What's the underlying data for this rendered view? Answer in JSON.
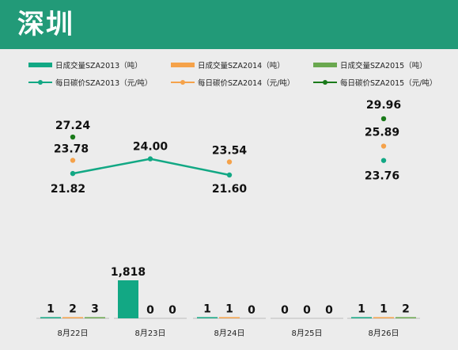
{
  "header": {
    "title": "深圳"
  },
  "colors": {
    "banner": "#229a78",
    "s2013": "#12a884",
    "s2014": "#f5a24a",
    "s2015": "#6aa84f",
    "p2015": "#1a7a1a"
  },
  "legend": {
    "bars": [
      "日成交量SZA2013（吨）",
      "日成交量SZA2014（吨）",
      "日成交量SZA2015（吨）"
    ],
    "lines": [
      "每日碳价SZA2013（元/吨）",
      "每日碳价SZA2014（元/吨）",
      "每日碳价SZA2015（元/吨）"
    ]
  },
  "chart_data": {
    "type": "bar",
    "categories": [
      "8月22日",
      "8月23日",
      "8月24日",
      "8月25日",
      "8月26日"
    ],
    "volume_series": [
      {
        "name": "日成交量SZA2013（吨）",
        "values": [
          1,
          1818,
          1,
          0,
          1
        ]
      },
      {
        "name": "日成交量SZA2014（吨）",
        "values": [
          2,
          0,
          1,
          0,
          1
        ]
      },
      {
        "name": "日成交量SZA2015（吨）",
        "values": [
          3,
          0,
          0,
          0,
          2
        ]
      }
    ],
    "price_series": [
      {
        "name": "每日碳价SZA2013（元/吨）",
        "type": "line",
        "values": [
          21.82,
          24.0,
          21.6,
          null,
          23.76
        ]
      },
      {
        "name": "每日碳价SZA2014（元/吨）",
        "type": "line",
        "values": [
          23.78,
          null,
          23.54,
          null,
          25.89
        ]
      },
      {
        "name": "每日碳价SZA2015（元/吨）",
        "type": "line",
        "values": [
          27.24,
          null,
          null,
          null,
          29.96
        ]
      }
    ],
    "bar_labels": [
      [
        "1",
        "1,818",
        "1",
        "0",
        "1"
      ],
      [
        "2",
        "0",
        "1",
        "0",
        "1"
      ],
      [
        "3",
        "0",
        "0",
        "0",
        "2"
      ]
    ],
    "price_labels": [
      [
        "21.82",
        "24.00",
        "21.60",
        "",
        "23.76"
      ],
      [
        "23.78",
        "",
        "23.54",
        "",
        "25.89"
      ],
      [
        "27.24",
        "",
        "",
        "",
        "29.96"
      ]
    ],
    "legend_position": "top",
    "grid": false
  }
}
